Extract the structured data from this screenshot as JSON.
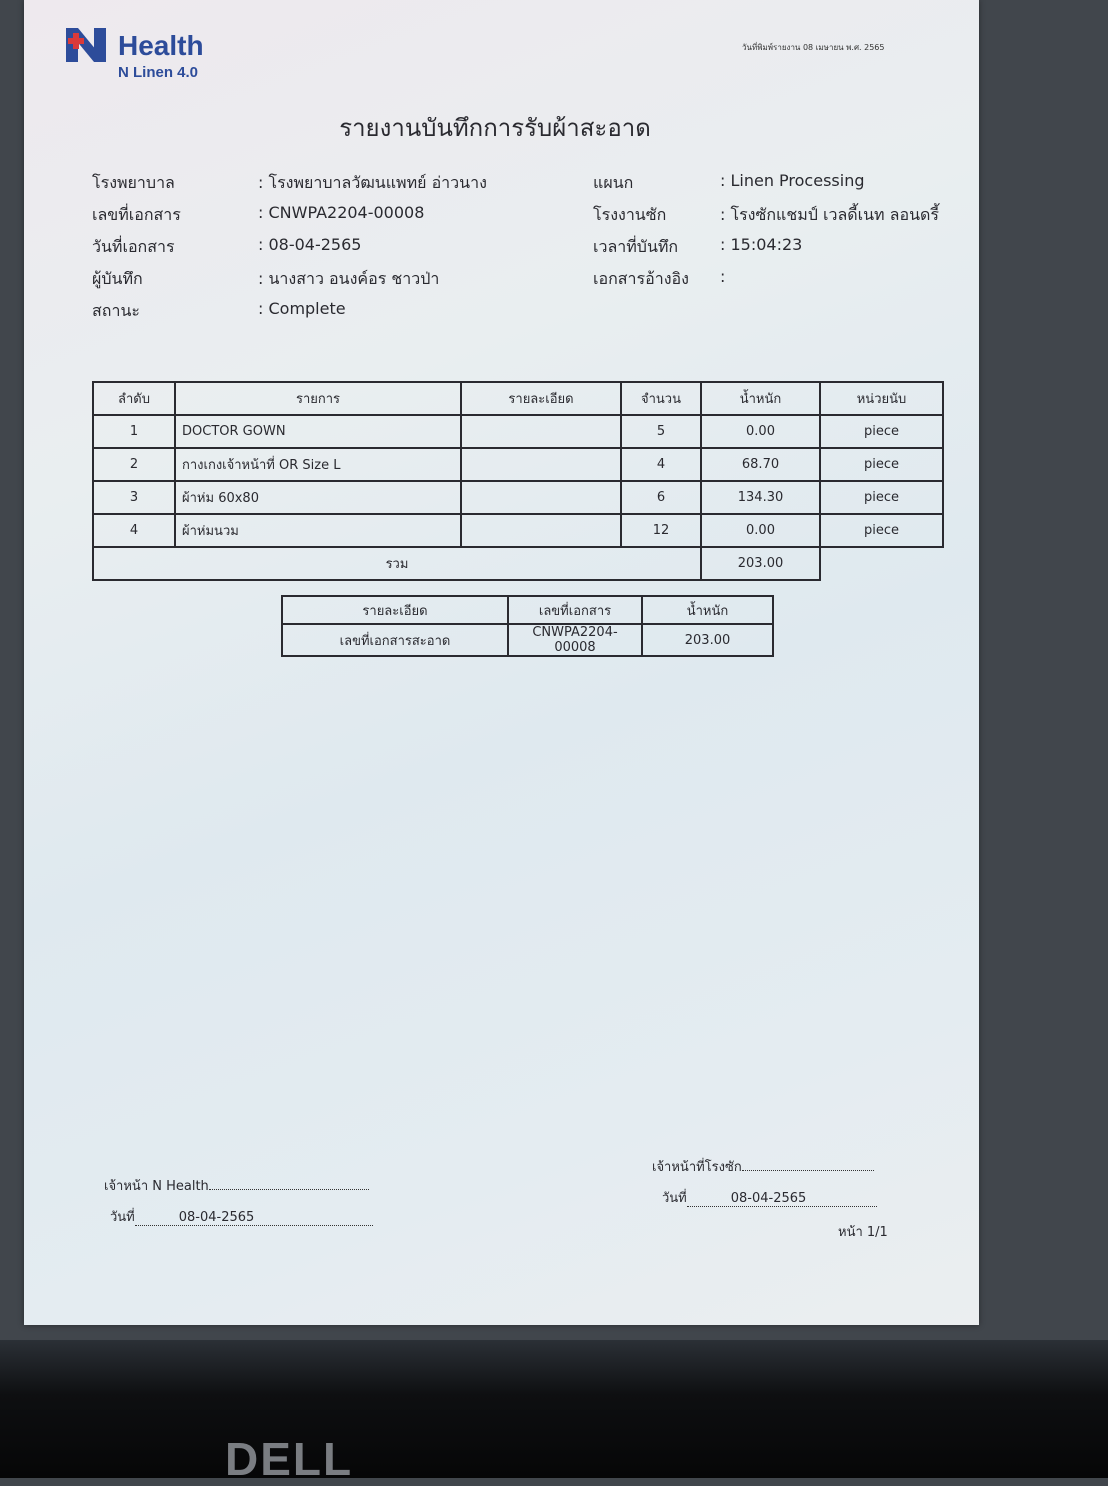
{
  "logo": {
    "brand": "Health",
    "product": "N Linen 4.0",
    "colors": {
      "red": "#d93a3a",
      "blue": "#2d4c9a"
    }
  },
  "print_date": "วันที่พิมพ์รายงาน 08 เมษายน พ.ศ. 2565",
  "title": "รายงานบันทึกการรับผ้าสะอาด",
  "info_left": [
    {
      "label": "โรงพยาบาล",
      "value": ": โรงพยาบาลวัฒนแพทย์ อ่าวนาง"
    },
    {
      "label": "เลขที่เอกสาร",
      "value": ": CNWPA2204-00008"
    },
    {
      "label": "วันที่เอกสาร",
      "value": ": 08-04-2565"
    },
    {
      "label": "ผู้บันทึก",
      "value": ": นางสาว อนงค์อร ชาวป่า"
    },
    {
      "label": "สถานะ",
      "value": ": Complete"
    }
  ],
  "info_right": [
    {
      "label": "แผนก",
      "value": ": Linen Processing"
    },
    {
      "label": "โรงงานซัก",
      "value": ": โรงซักแชมป์ เวลดี้เนท ลอนดรี้"
    },
    {
      "label": "เวลาที่บันทึก",
      "value": ": 15:04:23"
    },
    {
      "label": "เอกสารอ้างอิง",
      "value": ":"
    }
  ],
  "items_table": {
    "headers": [
      "ลำดับ",
      "รายการ",
      "รายละเอียด",
      "จำนวน",
      "น้ำหนัก",
      "หน่วยนับ"
    ],
    "rows": [
      [
        "1",
        "DOCTOR GOWN",
        "",
        "5",
        "0.00",
        "piece"
      ],
      [
        "2",
        "กางเกงเจ้าหน้าที่ OR Size L",
        "",
        "4",
        "68.70",
        "piece"
      ],
      [
        "3",
        "ผ้าห่ม 60x80",
        "",
        "6",
        "134.30",
        "piece"
      ],
      [
        "4",
        "ผ้าห่มนวม",
        "",
        "12",
        "0.00",
        "piece"
      ]
    ],
    "total_label": "รวม",
    "total_weight": "203.00"
  },
  "summary_table": {
    "headers": [
      "รายละเอียด",
      "เลขที่เอกสาร",
      "น้ำหนัก"
    ],
    "rows": [
      [
        "เลขที่เอกสารสะอาด",
        "CNWPA2204-00008",
        "203.00"
      ]
    ]
  },
  "signatures": {
    "left_label": "เจ้าหน้า N Health",
    "left_date_label": "วันที่",
    "left_date": "08-04-2565",
    "right_label": "เจ้าหน้าที่โรงซัก",
    "right_date_label": "วันที่",
    "right_date": "08-04-2565"
  },
  "page_number": "หน้า 1/1",
  "monitor_brand": "DELL"
}
